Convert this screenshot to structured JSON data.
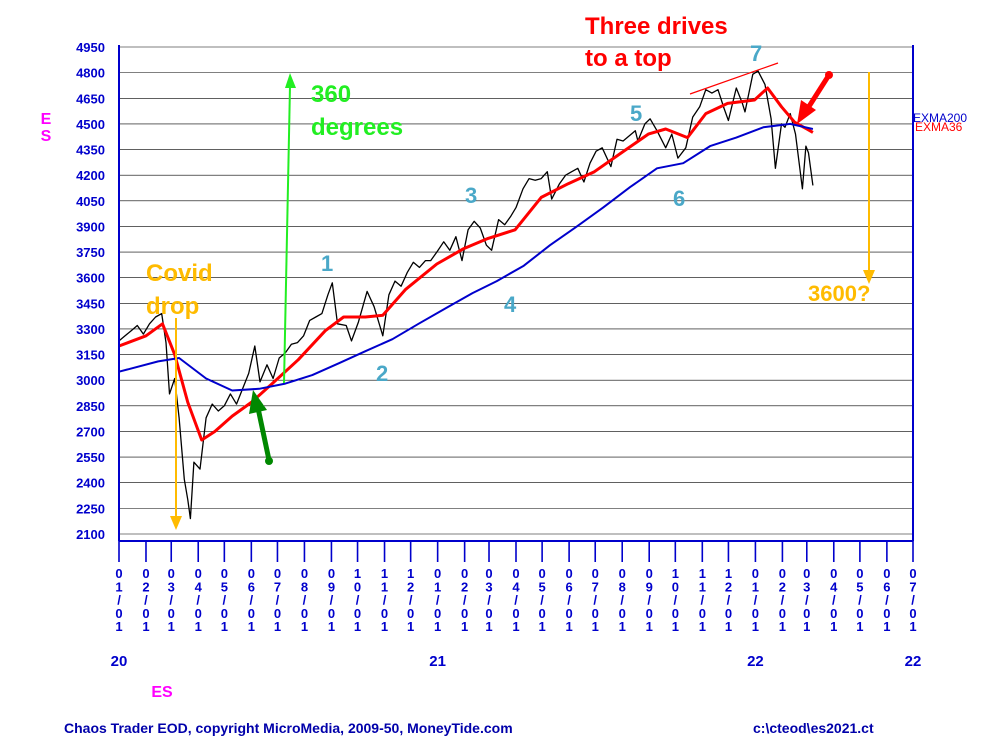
{
  "chart_data": {
    "type": "line",
    "symbol": "ES",
    "ylim": [
      2100,
      4950
    ],
    "yticks": [
      2100,
      2250,
      2400,
      2550,
      2700,
      2850,
      3000,
      3150,
      3300,
      3450,
      3600,
      3750,
      3900,
      4050,
      4200,
      4350,
      4500,
      4650,
      4800,
      4950
    ],
    "xlim": [
      "2020-01-01",
      "2022-07-01"
    ],
    "x_ticks": [
      {
        "date": "2020-01-01",
        "label": "01/01"
      },
      {
        "date": "2020-02-01",
        "label": "02/01"
      },
      {
        "date": "2020-03-01",
        "label": "03/01"
      },
      {
        "date": "2020-04-01",
        "label": "04/01"
      },
      {
        "date": "2020-05-01",
        "label": "05/01"
      },
      {
        "date": "2020-06-01",
        "label": "06/01"
      },
      {
        "date": "2020-07-01",
        "label": "07/01"
      },
      {
        "date": "2020-08-01",
        "label": "08/01"
      },
      {
        "date": "2020-09-01",
        "label": "09/01"
      },
      {
        "date": "2020-10-01",
        "label": "10/01"
      },
      {
        "date": "2020-11-01",
        "label": "11/01"
      },
      {
        "date": "2020-12-01",
        "label": "12/01"
      },
      {
        "date": "2021-01-01",
        "label": "01/01"
      },
      {
        "date": "2021-02-01",
        "label": "02/01"
      },
      {
        "date": "2021-03-01",
        "label": "03/01"
      },
      {
        "date": "2021-04-01",
        "label": "04/01"
      },
      {
        "date": "2021-05-01",
        "label": "05/01"
      },
      {
        "date": "2021-06-01",
        "label": "06/01"
      },
      {
        "date": "2021-07-01",
        "label": "07/01"
      },
      {
        "date": "2021-08-01",
        "label": "08/01"
      },
      {
        "date": "2021-09-01",
        "label": "09/01"
      },
      {
        "date": "2021-10-01",
        "label": "10/01"
      },
      {
        "date": "2021-11-01",
        "label": "11/01"
      },
      {
        "date": "2021-12-01",
        "label": "12/01"
      },
      {
        "date": "2022-01-01",
        "label": "01/01"
      },
      {
        "date": "2022-02-01",
        "label": "02/01"
      },
      {
        "date": "2022-03-01",
        "label": "03/01"
      },
      {
        "date": "2022-04-01",
        "label": "04/01"
      },
      {
        "date": "2022-05-01",
        "label": "05/01"
      },
      {
        "date": "2022-06-01",
        "label": "06/01"
      },
      {
        "date": "2022-07-01",
        "label": "07/01"
      }
    ],
    "year_labels": [
      {
        "date": "2020-01-01",
        "label": "20"
      },
      {
        "date": "2021-01-01",
        "label": "21"
      },
      {
        "date": "2022-01-01",
        "label": "22"
      },
      {
        "date": "2022-07-01",
        "label": "22"
      }
    ],
    "ylabel": "ES",
    "xlabel": "ES",
    "grid": "horizontal",
    "series": [
      {
        "name": "",
        "color": "#000000",
        "style": "price",
        "points": [
          [
            "2020-01-01",
            3230
          ],
          [
            "2020-01-08",
            3260
          ],
          [
            "2020-01-15",
            3290
          ],
          [
            "2020-01-22",
            3320
          ],
          [
            "2020-01-29",
            3270
          ],
          [
            "2020-02-05",
            3330
          ],
          [
            "2020-02-12",
            3370
          ],
          [
            "2020-02-19",
            3390
          ],
          [
            "2020-02-24",
            3220
          ],
          [
            "2020-02-28",
            2920
          ],
          [
            "2020-03-05",
            3010
          ],
          [
            "2020-03-10",
            2780
          ],
          [
            "2020-03-16",
            2420
          ],
          [
            "2020-03-20",
            2300
          ],
          [
            "2020-03-23",
            2190
          ],
          [
            "2020-03-27",
            2520
          ],
          [
            "2020-04-03",
            2480
          ],
          [
            "2020-04-10",
            2780
          ],
          [
            "2020-04-17",
            2860
          ],
          [
            "2020-04-24",
            2820
          ],
          [
            "2020-05-01",
            2850
          ],
          [
            "2020-05-08",
            2920
          ],
          [
            "2020-05-15",
            2860
          ],
          [
            "2020-05-22",
            2950
          ],
          [
            "2020-05-29",
            3040
          ],
          [
            "2020-06-05",
            3200
          ],
          [
            "2020-06-11",
            2990
          ],
          [
            "2020-06-19",
            3090
          ],
          [
            "2020-06-26",
            3010
          ],
          [
            "2020-07-03",
            3130
          ],
          [
            "2020-07-10",
            3160
          ],
          [
            "2020-07-17",
            3210
          ],
          [
            "2020-07-24",
            3220
          ],
          [
            "2020-07-31",
            3260
          ],
          [
            "2020-08-07",
            3350
          ],
          [
            "2020-08-14",
            3370
          ],
          [
            "2020-08-21",
            3390
          ],
          [
            "2020-08-28",
            3500
          ],
          [
            "2020-09-02",
            3570
          ],
          [
            "2020-09-08",
            3330
          ],
          [
            "2020-09-18",
            3320
          ],
          [
            "2020-09-24",
            3230
          ],
          [
            "2020-10-02",
            3340
          ],
          [
            "2020-10-12",
            3520
          ],
          [
            "2020-10-20",
            3430
          ],
          [
            "2020-10-30",
            3260
          ],
          [
            "2020-11-06",
            3500
          ],
          [
            "2020-11-13",
            3580
          ],
          [
            "2020-11-20",
            3550
          ],
          [
            "2020-11-27",
            3630
          ],
          [
            "2020-12-04",
            3690
          ],
          [
            "2020-12-11",
            3660
          ],
          [
            "2020-12-18",
            3700
          ],
          [
            "2020-12-24",
            3700
          ],
          [
            "2020-12-31",
            3750
          ],
          [
            "2021-01-08",
            3810
          ],
          [
            "2021-01-15",
            3760
          ],
          [
            "2021-01-22",
            3840
          ],
          [
            "2021-01-29",
            3700
          ],
          [
            "2021-02-05",
            3880
          ],
          [
            "2021-02-12",
            3930
          ],
          [
            "2021-02-19",
            3890
          ],
          [
            "2021-02-26",
            3790
          ],
          [
            "2021-03-04",
            3760
          ],
          [
            "2021-03-12",
            3940
          ],
          [
            "2021-03-19",
            3910
          ],
          [
            "2021-03-26",
            3960
          ],
          [
            "2021-04-01",
            4010
          ],
          [
            "2021-04-09",
            4120
          ],
          [
            "2021-04-16",
            4180
          ],
          [
            "2021-04-23",
            4170
          ],
          [
            "2021-04-30",
            4180
          ],
          [
            "2021-05-07",
            4220
          ],
          [
            "2021-05-12",
            4060
          ],
          [
            "2021-05-21",
            4150
          ],
          [
            "2021-05-28",
            4200
          ],
          [
            "2021-06-04",
            4220
          ],
          [
            "2021-06-11",
            4240
          ],
          [
            "2021-06-18",
            4160
          ],
          [
            "2021-06-25",
            4270
          ],
          [
            "2021-07-02",
            4340
          ],
          [
            "2021-07-09",
            4360
          ],
          [
            "2021-07-19",
            4250
          ],
          [
            "2021-07-26",
            4410
          ],
          [
            "2021-08-02",
            4400
          ],
          [
            "2021-08-09",
            4430
          ],
          [
            "2021-08-16",
            4460
          ],
          [
            "2021-08-19",
            4400
          ],
          [
            "2021-08-27",
            4500
          ],
          [
            "2021-09-02",
            4530
          ],
          [
            "2021-09-10",
            4460
          ],
          [
            "2021-09-20",
            4360
          ],
          [
            "2021-09-27",
            4440
          ],
          [
            "2021-10-04",
            4300
          ],
          [
            "2021-10-13",
            4360
          ],
          [
            "2021-10-21",
            4540
          ],
          [
            "2021-10-29",
            4600
          ],
          [
            "2021-11-05",
            4700
          ],
          [
            "2021-11-12",
            4680
          ],
          [
            "2021-11-19",
            4700
          ],
          [
            "2021-11-26",
            4590
          ],
          [
            "2021-12-01",
            4520
          ],
          [
            "2021-12-10",
            4710
          ],
          [
            "2021-12-17",
            4620
          ],
          [
            "2021-12-20",
            4570
          ],
          [
            "2021-12-29",
            4790
          ],
          [
            "2022-01-04",
            4810
          ],
          [
            "2022-01-12",
            4730
          ],
          [
            "2022-01-19",
            4530
          ],
          [
            "2022-01-24",
            4240
          ],
          [
            "2022-01-31",
            4500
          ],
          [
            "2022-02-04",
            4480
          ],
          [
            "2022-02-10",
            4560
          ],
          [
            "2022-02-16",
            4440
          ],
          [
            "2022-02-24",
            4120
          ],
          [
            "2022-02-28",
            4370
          ],
          [
            "2022-03-03",
            4330
          ],
          [
            "2022-03-08",
            4140
          ]
        ]
      },
      {
        "name": "EXMA36",
        "color": "#ff0000",
        "style": "ma",
        "points": [
          [
            "2020-01-01",
            3200
          ],
          [
            "2020-02-01",
            3260
          ],
          [
            "2020-02-20",
            3330
          ],
          [
            "2020-03-05",
            3150
          ],
          [
            "2020-03-20",
            2870
          ],
          [
            "2020-04-05",
            2650
          ],
          [
            "2020-04-20",
            2700
          ],
          [
            "2020-05-10",
            2790
          ],
          [
            "2020-06-01",
            2870
          ],
          [
            "2020-06-25",
            2980
          ],
          [
            "2020-07-25",
            3120
          ],
          [
            "2020-08-25",
            3290
          ],
          [
            "2020-09-15",
            3370
          ],
          [
            "2020-10-10",
            3370
          ],
          [
            "2020-10-30",
            3380
          ],
          [
            "2020-11-25",
            3530
          ],
          [
            "2020-12-31",
            3680
          ],
          [
            "2021-01-31",
            3770
          ],
          [
            "2021-02-28",
            3830
          ],
          [
            "2021-03-31",
            3880
          ],
          [
            "2021-04-30",
            4070
          ],
          [
            "2021-05-31",
            4150
          ],
          [
            "2021-06-30",
            4220
          ],
          [
            "2021-07-31",
            4330
          ],
          [
            "2021-08-31",
            4440
          ],
          [
            "2021-09-20",
            4470
          ],
          [
            "2021-10-15",
            4420
          ],
          [
            "2021-11-05",
            4560
          ],
          [
            "2021-11-30",
            4620
          ],
          [
            "2021-12-31",
            4640
          ],
          [
            "2022-01-15",
            4710
          ],
          [
            "2022-01-31",
            4600
          ],
          [
            "2022-02-15",
            4510
          ],
          [
            "2022-03-01",
            4470
          ],
          [
            "2022-03-08",
            4450
          ]
        ]
      },
      {
        "name": "EXMA200",
        "color": "#0000cc",
        "style": "ma",
        "points": [
          [
            "2020-01-01",
            3050
          ],
          [
            "2020-02-15",
            3110
          ],
          [
            "2020-03-10",
            3130
          ],
          [
            "2020-04-10",
            3010
          ],
          [
            "2020-05-10",
            2940
          ],
          [
            "2020-06-10",
            2950
          ],
          [
            "2020-07-10",
            2980
          ],
          [
            "2020-08-10",
            3030
          ],
          [
            "2020-09-10",
            3100
          ],
          [
            "2020-10-10",
            3170
          ],
          [
            "2020-11-10",
            3240
          ],
          [
            "2020-12-10",
            3330
          ],
          [
            "2021-01-10",
            3420
          ],
          [
            "2021-02-10",
            3510
          ],
          [
            "2021-03-10",
            3580
          ],
          [
            "2021-04-10",
            3670
          ],
          [
            "2021-05-10",
            3790
          ],
          [
            "2021-06-10",
            3900
          ],
          [
            "2021-07-10",
            4010
          ],
          [
            "2021-08-10",
            4130
          ],
          [
            "2021-09-10",
            4240
          ],
          [
            "2021-10-10",
            4270
          ],
          [
            "2021-11-10",
            4370
          ],
          [
            "2021-12-10",
            4420
          ],
          [
            "2022-01-10",
            4480
          ],
          [
            "2022-02-10",
            4500
          ],
          [
            "2022-03-08",
            4470
          ]
        ]
      }
    ],
    "legend": [
      {
        "label": "EXMA200",
        "color": "#0000cc"
      },
      {
        "label": "EXMA36",
        "color": "#ff0000"
      }
    ],
    "annotations": [
      {
        "text": "Three drives",
        "color": "#ff0000"
      },
      {
        "text": "to a top",
        "color": "#ff0000"
      },
      {
        "text": "360",
        "color": "#22ee22"
      },
      {
        "text": "degrees",
        "color": "#22ee22"
      },
      {
        "text": "Covid",
        "color": "#ffbb00"
      },
      {
        "text": "drop",
        "color": "#ffbb00"
      },
      {
        "text": "3600?",
        "color": "#ffbb00"
      },
      {
        "text": "1",
        "color": "#4aa8c8"
      },
      {
        "text": "2",
        "color": "#4aa8c8"
      },
      {
        "text": "3",
        "color": "#4aa8c8"
      },
      {
        "text": "4",
        "color": "#4aa8c8"
      },
      {
        "text": "5",
        "color": "#4aa8c8"
      },
      {
        "text": "6",
        "color": "#4aa8c8"
      },
      {
        "text": "7",
        "color": "#4aa8c8"
      }
    ],
    "footer_left": "Chaos Trader EOD, copyright MicroMedia, 2009-50, MoneyTide.com",
    "footer_right": "c:\\cteod\\es2021.ct"
  }
}
